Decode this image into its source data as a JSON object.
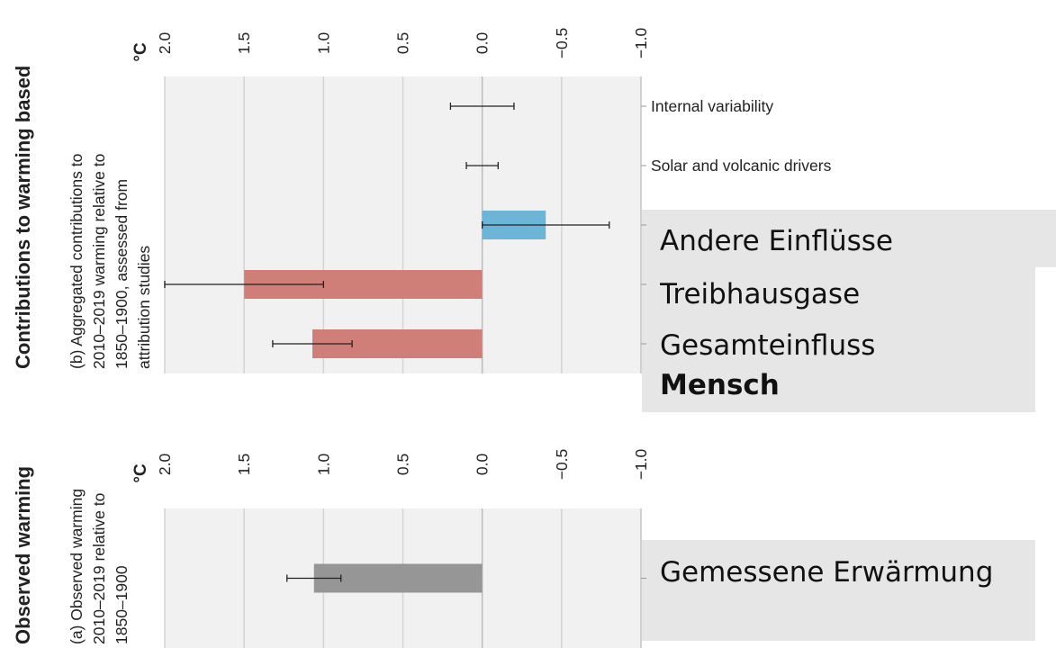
{
  "chart_data": [
    {
      "type": "bar",
      "orientation": "horizontal",
      "title": "Contributions to warming based",
      "subtitle": [
        "(b) Aggregated contributions to",
        "2010–2019 warming relative to",
        "1850–1900, assessed from",
        "attribution studies"
      ],
      "axis_label": "°C",
      "categories": [
        "Internal variability",
        "Solar and volcanic drivers",
        "Andere Einflüsse",
        "Treibhausgase",
        "Gesamteinfluss"
      ],
      "category_emphasis": "Mensch",
      "values": [
        0,
        0,
        -0.4,
        1.5,
        1.07
      ],
      "errors": [
        0.2,
        0.1,
        0.4,
        0.5,
        0.25
      ],
      "colors": [
        "#d07f78",
        "#d07f78",
        "#6db5d6",
        "#d07f78",
        "#d07f78"
      ],
      "xlim": [
        2,
        -1
      ],
      "xticks": [
        {
          "value": 2,
          "label": "2.0"
        },
        {
          "value": 1.5,
          "label": "1.5"
        },
        {
          "value": 1,
          "label": "1.0"
        },
        {
          "value": 0.5,
          "label": "0.5"
        },
        {
          "value": 0,
          "label": "0.0"
        },
        {
          "value": -0.5,
          "label": "−0.5"
        },
        {
          "value": -1,
          "label": "−1.0"
        }
      ],
      "grid": true
    },
    {
      "type": "bar",
      "orientation": "horizontal",
      "title": "Observed warming",
      "subtitle": [
        "(a) Observed warming",
        "2010–2019 relative to",
        "1850–1900"
      ],
      "axis_label": "°C",
      "categories": [
        "Gemessene Erwärmung"
      ],
      "values": [
        1.06
      ],
      "errors": [
        0.17
      ],
      "colors": [
        "#969696"
      ],
      "xlim": [
        2,
        -1
      ],
      "xticks": [
        {
          "value": 2,
          "label": "2.0"
        },
        {
          "value": 1.5,
          "label": "1.5"
        },
        {
          "value": 1,
          "label": "1.0"
        },
        {
          "value": 0.5,
          "label": "0.5"
        },
        {
          "value": 0,
          "label": "0.0"
        },
        {
          "value": -0.5,
          "label": "−0.5"
        },
        {
          "value": -1,
          "label": "−1.0"
        }
      ],
      "grid": true
    }
  ]
}
